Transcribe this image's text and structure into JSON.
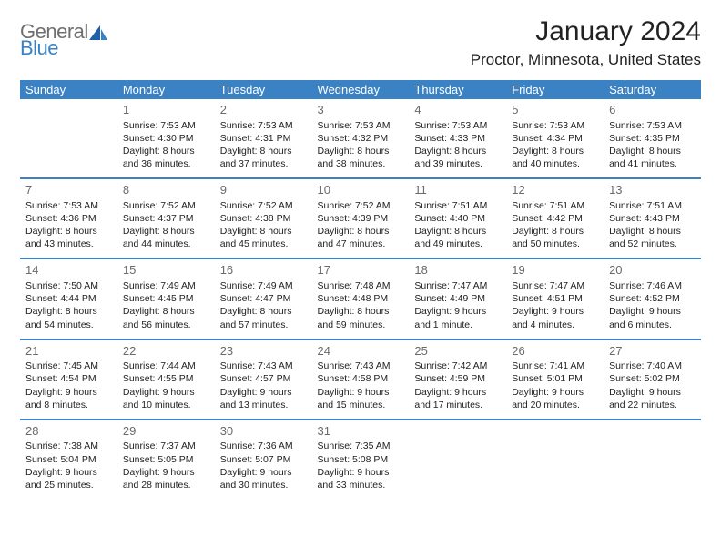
{
  "logo": {
    "line1": "General",
    "line2": "Blue"
  },
  "title": "January 2024",
  "location": "Proctor, Minnesota, United States",
  "colors": {
    "header_bg": "#3b82c4",
    "header_text": "#ffffff",
    "row_border": "#3b82c4",
    "daynum": "#6a6a6a",
    "body_text": "#222222",
    "logo_gray": "#6f6f6f",
    "logo_blue": "#3b82c4"
  },
  "weekdays": [
    "Sunday",
    "Monday",
    "Tuesday",
    "Wednesday",
    "Thursday",
    "Friday",
    "Saturday"
  ],
  "weeks": [
    [
      null,
      {
        "d": "1",
        "r": "7:53 AM",
        "s": "4:30 PM",
        "l": "8 hours and 36 minutes."
      },
      {
        "d": "2",
        "r": "7:53 AM",
        "s": "4:31 PM",
        "l": "8 hours and 37 minutes."
      },
      {
        "d": "3",
        "r": "7:53 AM",
        "s": "4:32 PM",
        "l": "8 hours and 38 minutes."
      },
      {
        "d": "4",
        "r": "7:53 AM",
        "s": "4:33 PM",
        "l": "8 hours and 39 minutes."
      },
      {
        "d": "5",
        "r": "7:53 AM",
        "s": "4:34 PM",
        "l": "8 hours and 40 minutes."
      },
      {
        "d": "6",
        "r": "7:53 AM",
        "s": "4:35 PM",
        "l": "8 hours and 41 minutes."
      }
    ],
    [
      {
        "d": "7",
        "r": "7:53 AM",
        "s": "4:36 PM",
        "l": "8 hours and 43 minutes."
      },
      {
        "d": "8",
        "r": "7:52 AM",
        "s": "4:37 PM",
        "l": "8 hours and 44 minutes."
      },
      {
        "d": "9",
        "r": "7:52 AM",
        "s": "4:38 PM",
        "l": "8 hours and 45 minutes."
      },
      {
        "d": "10",
        "r": "7:52 AM",
        "s": "4:39 PM",
        "l": "8 hours and 47 minutes."
      },
      {
        "d": "11",
        "r": "7:51 AM",
        "s": "4:40 PM",
        "l": "8 hours and 49 minutes."
      },
      {
        "d": "12",
        "r": "7:51 AM",
        "s": "4:42 PM",
        "l": "8 hours and 50 minutes."
      },
      {
        "d": "13",
        "r": "7:51 AM",
        "s": "4:43 PM",
        "l": "8 hours and 52 minutes."
      }
    ],
    [
      {
        "d": "14",
        "r": "7:50 AM",
        "s": "4:44 PM",
        "l": "8 hours and 54 minutes."
      },
      {
        "d": "15",
        "r": "7:49 AM",
        "s": "4:45 PM",
        "l": "8 hours and 56 minutes."
      },
      {
        "d": "16",
        "r": "7:49 AM",
        "s": "4:47 PM",
        "l": "8 hours and 57 minutes."
      },
      {
        "d": "17",
        "r": "7:48 AM",
        "s": "4:48 PM",
        "l": "8 hours and 59 minutes."
      },
      {
        "d": "18",
        "r": "7:47 AM",
        "s": "4:49 PM",
        "l": "9 hours and 1 minute."
      },
      {
        "d": "19",
        "r": "7:47 AM",
        "s": "4:51 PM",
        "l": "9 hours and 4 minutes."
      },
      {
        "d": "20",
        "r": "7:46 AM",
        "s": "4:52 PM",
        "l": "9 hours and 6 minutes."
      }
    ],
    [
      {
        "d": "21",
        "r": "7:45 AM",
        "s": "4:54 PM",
        "l": "9 hours and 8 minutes."
      },
      {
        "d": "22",
        "r": "7:44 AM",
        "s": "4:55 PM",
        "l": "9 hours and 10 minutes."
      },
      {
        "d": "23",
        "r": "7:43 AM",
        "s": "4:57 PM",
        "l": "9 hours and 13 minutes."
      },
      {
        "d": "24",
        "r": "7:43 AM",
        "s": "4:58 PM",
        "l": "9 hours and 15 minutes."
      },
      {
        "d": "25",
        "r": "7:42 AM",
        "s": "4:59 PM",
        "l": "9 hours and 17 minutes."
      },
      {
        "d": "26",
        "r": "7:41 AM",
        "s": "5:01 PM",
        "l": "9 hours and 20 minutes."
      },
      {
        "d": "27",
        "r": "7:40 AM",
        "s": "5:02 PM",
        "l": "9 hours and 22 minutes."
      }
    ],
    [
      {
        "d": "28",
        "r": "7:38 AM",
        "s": "5:04 PM",
        "l": "9 hours and 25 minutes."
      },
      {
        "d": "29",
        "r": "7:37 AM",
        "s": "5:05 PM",
        "l": "9 hours and 28 minutes."
      },
      {
        "d": "30",
        "r": "7:36 AM",
        "s": "5:07 PM",
        "l": "9 hours and 30 minutes."
      },
      {
        "d": "31",
        "r": "7:35 AM",
        "s": "5:08 PM",
        "l": "9 hours and 33 minutes."
      },
      null,
      null,
      null
    ]
  ],
  "labels": {
    "sunrise": "Sunrise:",
    "sunset": "Sunset:",
    "daylight": "Daylight:"
  }
}
